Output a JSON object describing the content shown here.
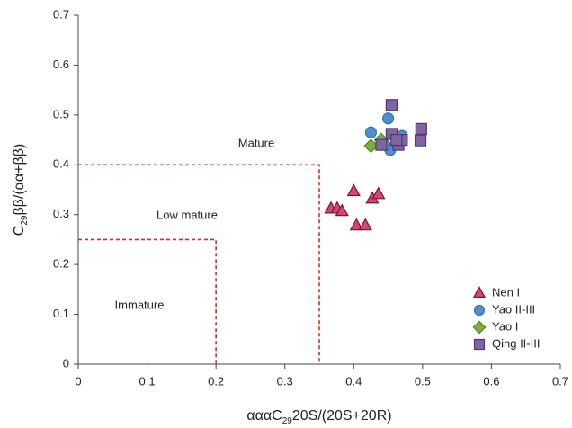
{
  "chart_data": {
    "type": "scatter",
    "xlabel_parts": [
      {
        "text": "αααC"
      },
      {
        "text": "29",
        "sub": true
      },
      {
        "text": "20S/(20S+20R)"
      }
    ],
    "ylabel_parts": [
      {
        "text": "C"
      },
      {
        "text": "29",
        "sub": true
      },
      {
        "text": "ββ/(αα+ββ)"
      }
    ],
    "xlim": [
      0,
      0.7
    ],
    "ylim": [
      0,
      0.7
    ],
    "xticks": [
      0,
      0.1,
      0.2,
      0.3,
      0.4,
      0.5,
      0.6,
      0.7
    ],
    "yticks": [
      0,
      0.1,
      0.2,
      0.3,
      0.4,
      0.5,
      0.6,
      0.7
    ],
    "annotations": [
      "Mature",
      "Low mature",
      "Immature"
    ],
    "boundaries": [
      {
        "x": 0.35,
        "y": 0.4
      },
      {
        "x": 0.2,
        "y": 0.25
      }
    ],
    "boundary_color": "#e02525",
    "legend": "lower right",
    "series": [
      {
        "name": "Nen I",
        "marker": "triangle",
        "color": "#d6466e",
        "edge": "#7a1532",
        "x": [
          0.367,
          0.376,
          0.383,
          0.4,
          0.404,
          0.417,
          0.427,
          0.436
        ],
        "values": [
          0.312,
          0.312,
          0.307,
          0.347,
          0.278,
          0.278,
          0.332,
          0.341
        ]
      },
      {
        "name": "Yao II-III",
        "marker": "circle",
        "color": "#4f8fd0",
        "edge": "#3a72ad",
        "x": [
          0.425,
          0.45,
          0.453,
          0.47,
          0.445
        ],
        "values": [
          0.465,
          0.493,
          0.43,
          0.458,
          0.44
        ]
      },
      {
        "name": "Yao I",
        "marker": "diamond",
        "color": "#7fae3c",
        "edge": "#5a8426",
        "x": [
          0.425,
          0.44
        ],
        "values": [
          0.438,
          0.45
        ]
      },
      {
        "name": "Qing II-III",
        "marker": "square",
        "color": "#8064a2",
        "edge": "#4e3a70",
        "x": [
          0.455,
          0.455,
          0.465,
          0.47,
          0.498,
          0.497,
          0.44,
          0.462
        ],
        "values": [
          0.52,
          0.462,
          0.44,
          0.45,
          0.472,
          0.449,
          0.44,
          0.45
        ]
      }
    ]
  }
}
